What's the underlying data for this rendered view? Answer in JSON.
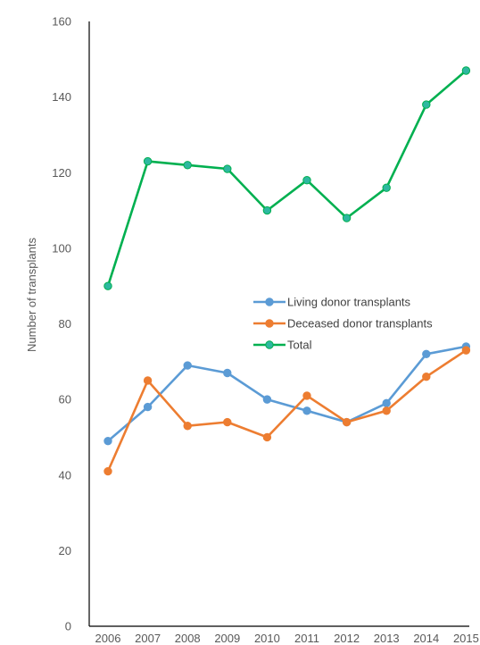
{
  "chart_data": {
    "type": "line",
    "title": "",
    "xlabel": "",
    "ylabel": "Number of transplants",
    "x": [
      "2006",
      "2007",
      "2008",
      "2009",
      "2010",
      "2011",
      "2012",
      "2013",
      "2014",
      "2015"
    ],
    "ylim": [
      0,
      160
    ],
    "yticks": [
      "0",
      "20",
      "40",
      "60",
      "80",
      "100",
      "120",
      "140",
      "160"
    ],
    "grid": false,
    "legend_position": "center-right",
    "series": [
      {
        "name": "Living donor transplants",
        "color": "#5B9BD5",
        "values": [
          49,
          58,
          69,
          67,
          60,
          57,
          54,
          59,
          72,
          74
        ]
      },
      {
        "name": "Deceased donor transplants",
        "color": "#ED7D31",
        "values": [
          41,
          65,
          53,
          54,
          50,
          61,
          54,
          57,
          66,
          73
        ]
      },
      {
        "name": "Total",
        "color": "#00B050",
        "marker_color": "#2EB8A0",
        "values": [
          90,
          123,
          122,
          121,
          110,
          118,
          108,
          116,
          138,
          147
        ]
      }
    ]
  }
}
